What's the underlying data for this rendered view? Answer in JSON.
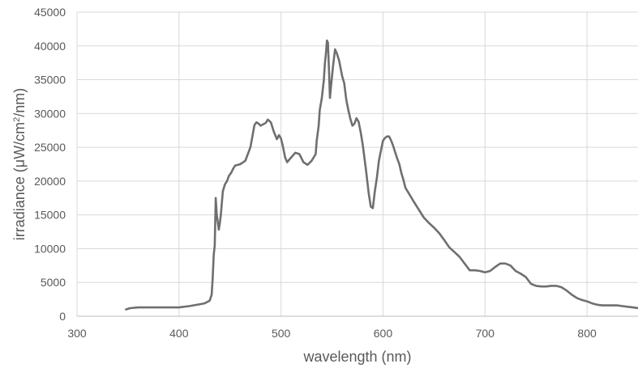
{
  "chart_data": {
    "type": "line",
    "title": "",
    "xlabel": "wavelength (nm)",
    "ylabel_main": "irradiance (μW/cm",
    "ylabel_sup": "2",
    "ylabel_tail": "/nm)",
    "xlim": [
      300,
      850
    ],
    "ylim": [
      0,
      45000
    ],
    "x_ticks": [
      300,
      400,
      500,
      600,
      700,
      800
    ],
    "y_ticks": [
      0,
      5000,
      10000,
      15000,
      20000,
      25000,
      30000,
      35000,
      40000,
      45000
    ],
    "grid": true,
    "legend": "none",
    "colors": {
      "series": "#6f6f6f",
      "grid": "#d9d9d9",
      "axis": "#bfbfbf",
      "text": "#595959"
    },
    "series": [
      {
        "x": [
          348,
          352,
          360,
          380,
          400,
          410,
          425,
          430,
          432,
          433,
          434,
          435,
          436,
          437,
          438,
          439,
          440,
          441,
          443,
          445,
          447,
          449,
          451,
          453,
          455,
          460,
          465,
          470,
          474,
          476,
          478,
          480,
          485,
          487,
          490,
          493,
          496,
          498,
          500,
          502,
          504,
          506,
          510,
          514,
          518,
          522,
          526,
          530,
          534,
          535,
          537,
          538,
          540,
          542,
          543,
          544,
          545,
          546,
          547,
          548,
          549,
          551,
          553,
          555,
          557,
          560,
          562,
          564,
          566,
          568,
          570,
          572,
          574,
          576,
          578,
          580,
          583,
          586,
          588,
          590,
          592,
          594,
          596,
          598,
          600,
          602,
          604,
          606,
          608,
          610,
          612,
          614,
          616,
          618,
          620,
          622,
          624,
          626,
          630,
          635,
          640,
          645,
          650,
          655,
          660,
          665,
          670,
          675,
          680,
          685,
          688,
          690,
          695,
          700,
          705,
          710,
          715,
          720,
          725,
          730,
          735,
          740,
          745,
          750,
          755,
          760,
          765,
          770,
          775,
          780,
          785,
          790,
          795,
          800,
          805,
          810,
          815,
          820,
          825,
          830,
          835,
          840,
          845,
          850
        ],
        "values": [
          1000,
          1200,
          1300,
          1300,
          1300,
          1500,
          1900,
          2300,
          3200,
          5500,
          9000,
          10500,
          17500,
          15000,
          14000,
          12800,
          13700,
          15000,
          18500,
          19500,
          20000,
          20800,
          21200,
          21800,
          22300,
          22500,
          23000,
          25000,
          28300,
          28700,
          28500,
          28200,
          28600,
          29100,
          28700,
          27300,
          26200,
          26800,
          26300,
          25000,
          23500,
          22800,
          23500,
          24200,
          24000,
          22800,
          22400,
          23000,
          24000,
          26000,
          28300,
          30500,
          32300,
          35000,
          37300,
          38800,
          40800,
          40500,
          36500,
          32300,
          34000,
          37000,
          39500,
          38800,
          37800,
          35500,
          34500,
          32000,
          30500,
          29200,
          28200,
          28500,
          29300,
          28800,
          27300,
          25500,
          22000,
          18200,
          16200,
          16000,
          18500,
          20500,
          23000,
          24500,
          26000,
          26400,
          26600,
          26600,
          26000,
          25200,
          24200,
          23300,
          22500,
          21200,
          20200,
          19000,
          18500,
          18000,
          17000,
          15800,
          14600,
          13800,
          13100,
          12300,
          11300,
          10200,
          9500,
          8800,
          7800,
          6800,
          6800,
          6800,
          6700,
          6500,
          6700,
          7300,
          7800,
          7800,
          7500,
          6700,
          6300,
          5800,
          4800,
          4500,
          4400,
          4400,
          4500,
          4500,
          4300,
          3800,
          3200,
          2700,
          2400,
          2200,
          1900,
          1700,
          1600,
          1600,
          1600,
          1600,
          1500,
          1400,
          1300,
          1200
        ]
      }
    ]
  }
}
